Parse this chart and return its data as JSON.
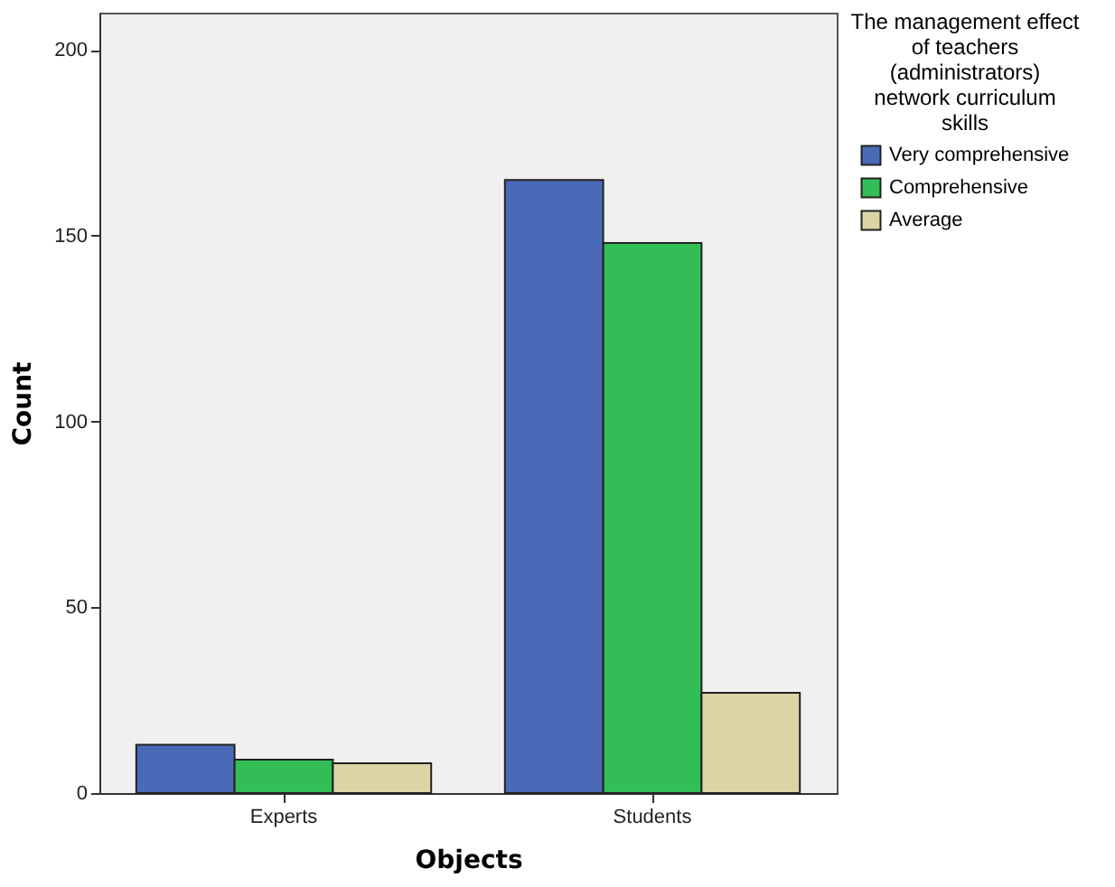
{
  "chart_data": {
    "type": "bar",
    "xlabel": "Objects",
    "ylabel": "Count",
    "legend_title": "The management effect of teachers (administrators) network curriculum skills",
    "categories": [
      "Experts",
      "Students"
    ],
    "series": [
      {
        "name": "Very comprehensive",
        "color": "#4a6ab8",
        "values": [
          13,
          165
        ]
      },
      {
        "name": "Comprehensive",
        "color": "#33bd56",
        "values": [
          9,
          148
        ]
      },
      {
        "name": "Average",
        "color": "#dbd5a6",
        "values": [
          8,
          27
        ]
      }
    ],
    "ylim": [
      0,
      210
    ],
    "yticks": [
      0,
      50,
      100,
      150,
      200
    ],
    "grid": false,
    "legend": "top right"
  }
}
